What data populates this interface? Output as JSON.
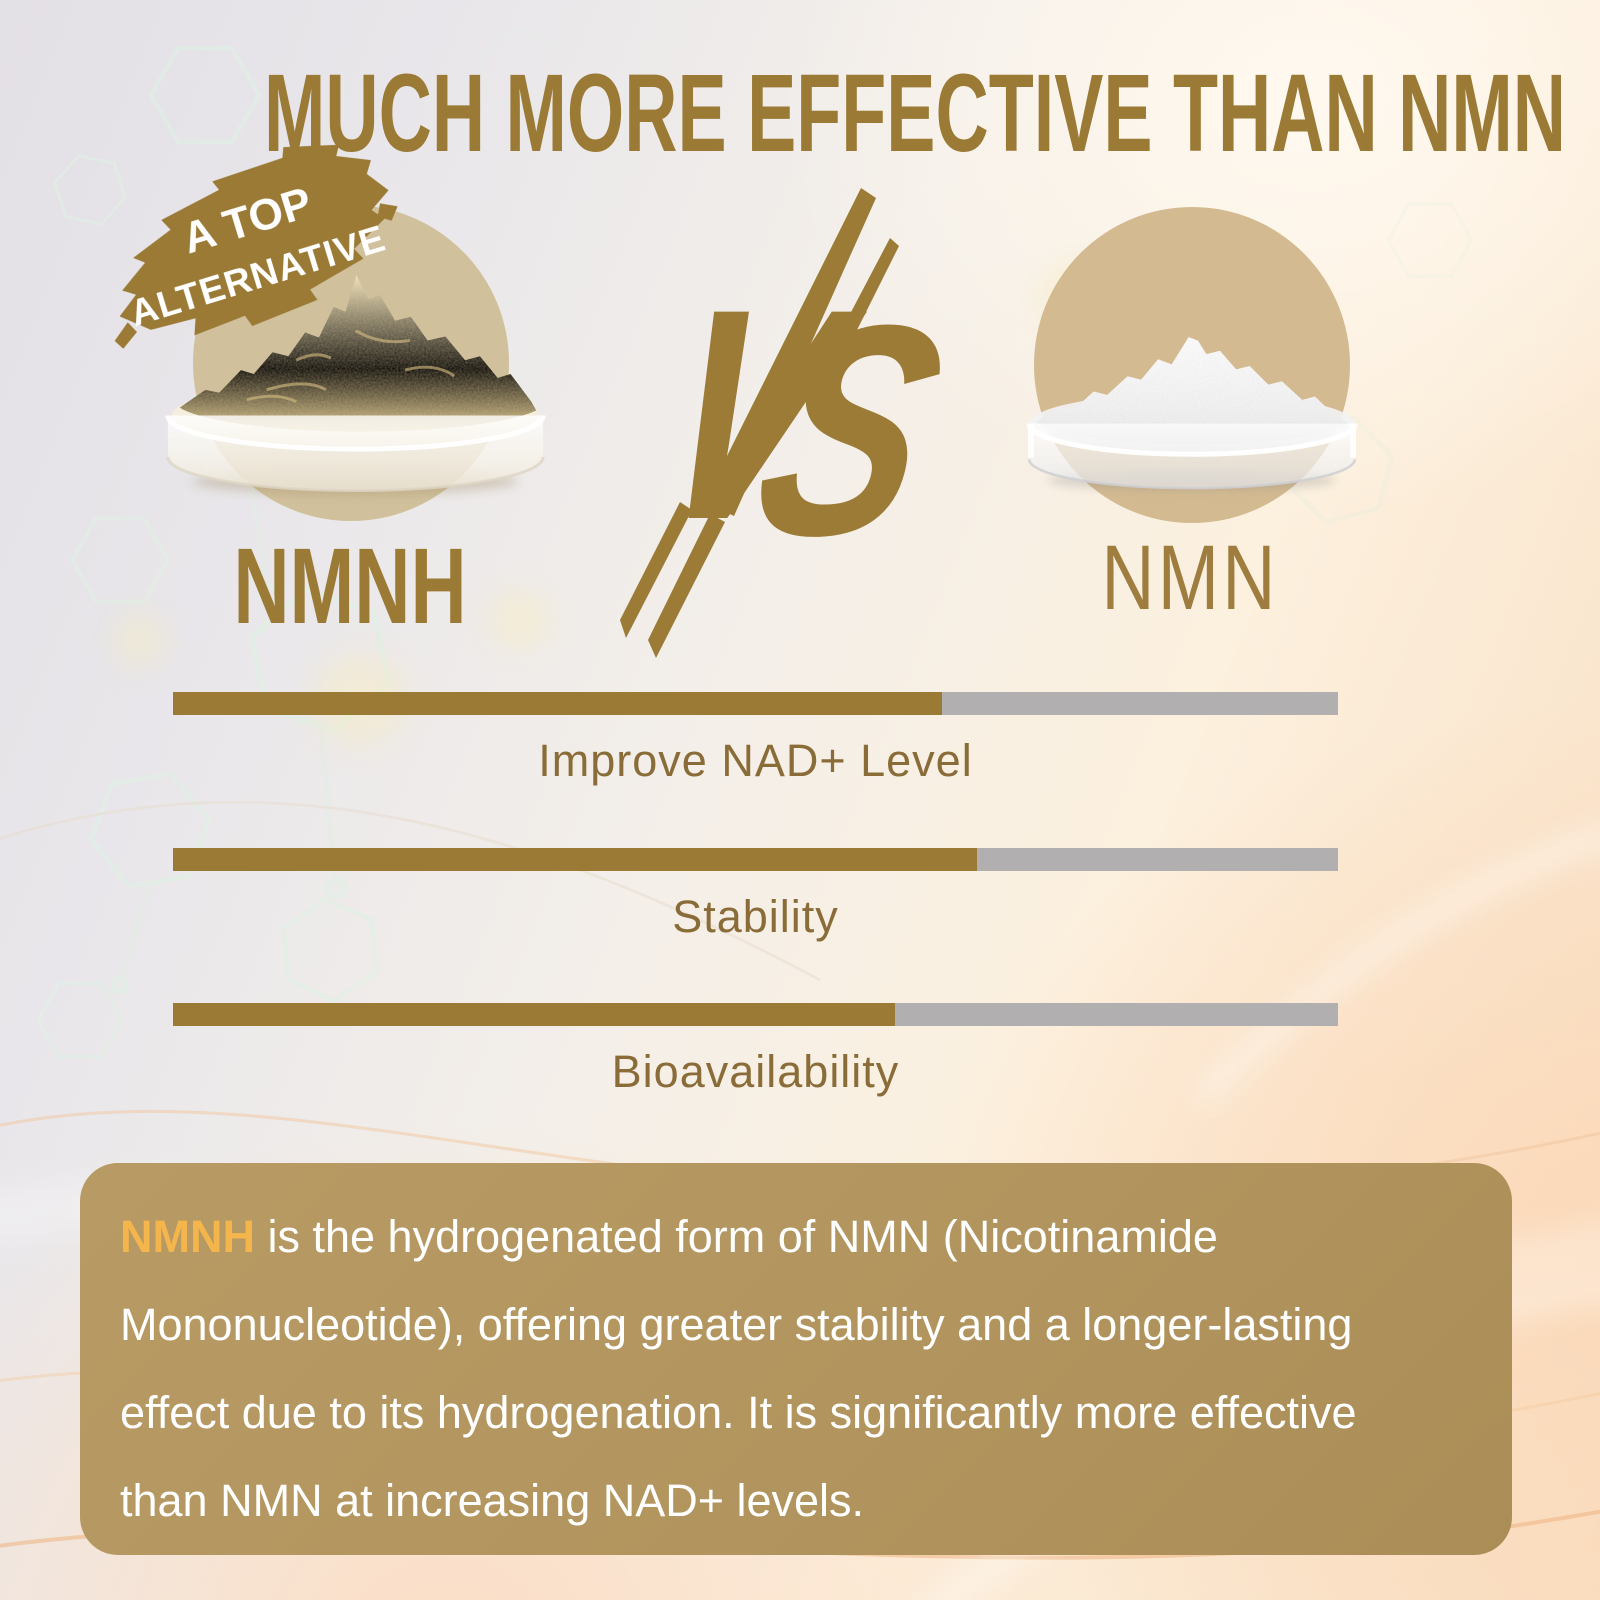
{
  "title": "MUCH MORE EFFECTIVE THAN NMN",
  "badge": {
    "line1": "A TOP",
    "line2": "ALTERNATIVE"
  },
  "products": {
    "left": {
      "name": "NMNH"
    },
    "right": {
      "name": "NMN"
    }
  },
  "vs": {
    "text": "VS",
    "letters": [
      "V",
      "S"
    ]
  },
  "bars": [
    {
      "label": "Improve NAD+ Level",
      "nmnh_pct": 66
    },
    {
      "label": "Stability",
      "nmnh_pct": 69
    },
    {
      "label": "Bioavailability",
      "nmnh_pct": 62
    }
  ],
  "chart_data": {
    "type": "bar",
    "categories": [
      "Improve NAD+ Level",
      "Stability",
      "Bioavailability"
    ],
    "series": [
      {
        "name": "NMNH",
        "values": [
          66,
          69,
          62
        ]
      },
      {
        "name": "NMN",
        "values": [
          34,
          31,
          38
        ]
      }
    ],
    "title": "MUCH MORE EFFECTIVE THAN NMN",
    "xlabel": "",
    "ylabel": "",
    "value_unit": "estimated percent of bar filled gold (NMNH) vs gray (NMN); no numeric labels shown",
    "legend_position": "none",
    "grid": false
  },
  "description": {
    "highlight": "NMNH",
    "lines": [
      " is the hydrogenated form of NMN (Nicotinamide",
      "Mononucleotide), offering greater stability and a longer-lasting",
      "effect due to its hydrogenation. It is significantly more effective",
      "than NMN at increasing NAD+ levels."
    ]
  },
  "colors": {
    "gold": "#9a7a35",
    "bar_gray": "#b1afb0",
    "bar_label": "#8a6c38",
    "box_bg": "#b2955e",
    "box_highlight": "#f3b54c",
    "circle_left": "#d1c09c",
    "circle_right": "#d4ba90"
  }
}
